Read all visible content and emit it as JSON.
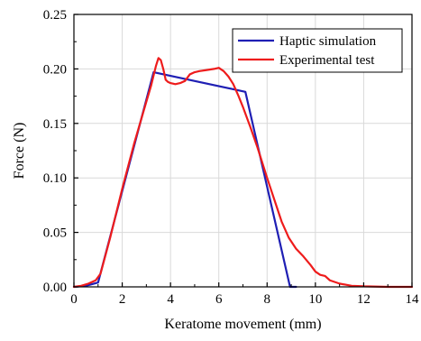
{
  "chart_data": {
    "type": "line",
    "xlabel": "Keratome movement (mm)",
    "ylabel": "Force (N)",
    "xlim": [
      0,
      14
    ],
    "ylim": [
      0,
      0.25
    ],
    "x_ticks": [
      0,
      2,
      4,
      6,
      8,
      10,
      12,
      14
    ],
    "y_ticks": [
      0.0,
      0.05,
      0.1,
      0.15,
      0.2,
      0.25
    ],
    "x_tick_labels": [
      "0",
      "2",
      "4",
      "6",
      "8",
      "10",
      "12",
      "14"
    ],
    "y_tick_labels": [
      "0.00",
      "0.05",
      "0.10",
      "0.15",
      "0.20",
      "0.25"
    ],
    "grid": true,
    "legend_position": "top-right",
    "series": [
      {
        "name": "Haptic simulation",
        "color": "#1f1fb4",
        "x": [
          0,
          0.5,
          1.0,
          3.3,
          7.1,
          8.95,
          9.2
        ],
        "y": [
          0,
          0.001,
          0.004,
          0.197,
          0.179,
          0.0,
          0.0
        ]
      },
      {
        "name": "Experimental test",
        "color": "#ee1c1c",
        "x": [
          0,
          0.3,
          0.6,
          0.9,
          1.1,
          1.5,
          2.0,
          2.5,
          3.0,
          3.2,
          3.4,
          3.5,
          3.6,
          3.7,
          3.8,
          3.9,
          4.0,
          4.2,
          4.4,
          4.6,
          4.8,
          5.0,
          5.2,
          5.5,
          5.8,
          6.0,
          6.2,
          6.4,
          6.6,
          6.8,
          7.0,
          7.3,
          7.6,
          8.0,
          8.3,
          8.6,
          8.9,
          9.2,
          9.5,
          9.8,
          10.0,
          10.2,
          10.4,
          10.6,
          11.0,
          11.5,
          12.0,
          13.0,
          14.0
        ],
        "y": [
          0,
          0.001,
          0.003,
          0.006,
          0.012,
          0.045,
          0.09,
          0.132,
          0.17,
          0.185,
          0.203,
          0.21,
          0.208,
          0.2,
          0.19,
          0.188,
          0.187,
          0.186,
          0.187,
          0.189,
          0.195,
          0.197,
          0.198,
          0.199,
          0.2,
          0.201,
          0.198,
          0.193,
          0.186,
          0.176,
          0.165,
          0.147,
          0.128,
          0.1,
          0.08,
          0.06,
          0.045,
          0.035,
          0.028,
          0.02,
          0.014,
          0.011,
          0.01,
          0.006,
          0.003,
          0.001,
          0.0005,
          0.0,
          0.0
        ]
      }
    ]
  }
}
